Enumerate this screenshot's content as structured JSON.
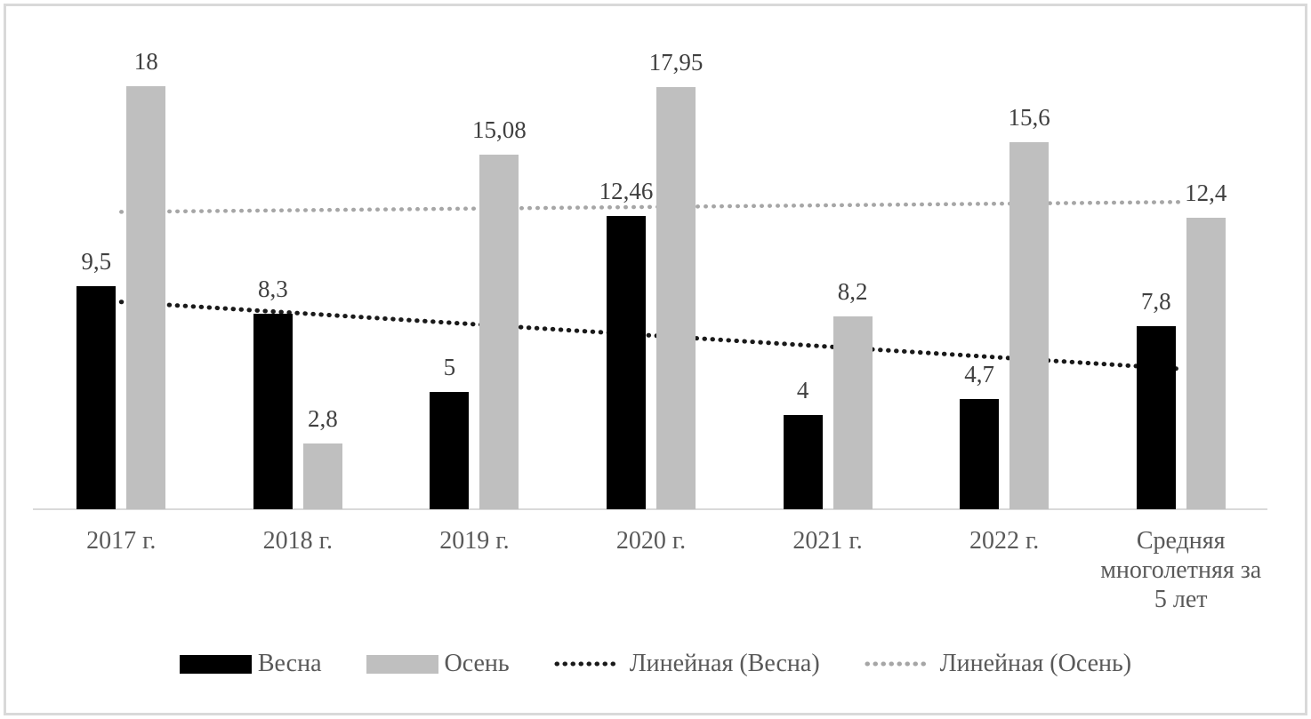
{
  "chart_data": {
    "type": "bar",
    "title": "",
    "xlabel": "",
    "ylabel": "",
    "categories": [
      "2017 г.",
      "2018 г.",
      "2019 г.",
      "2020 г.",
      "2021 г.",
      "2022 г.",
      "Средняя многолетняя за 5 лет"
    ],
    "series": [
      {
        "name": "Весна",
        "color": "#000000",
        "values": [
          9.5,
          8.3,
          5,
          12.46,
          4,
          4.7,
          7.8
        ],
        "value_labels": [
          "9,5",
          "8,3",
          "5",
          "12,46",
          "4",
          "4,7",
          "7,8"
        ]
      },
      {
        "name": "Осень",
        "color": "#bfbfbf",
        "values": [
          18,
          2.8,
          15.08,
          17.95,
          8.2,
          15.6,
          12.4
        ],
        "value_labels": [
          "18",
          "2,8",
          "15,08",
          "17,95",
          "8,2",
          "15,6",
          "12,4"
        ]
      }
    ],
    "trendlines": [
      {
        "name": "Линейная (Весна)",
        "color": "#1a1a1a",
        "start_value": 8.82,
        "end_value": 5.97
      },
      {
        "name": "Линейная (Осень)",
        "color": "#a6a6a6",
        "start_value": 12.65,
        "end_value": 13.07
      }
    ],
    "legend": {
      "position": "bottom",
      "items": [
        {
          "label": "Весна",
          "swatch": "bar",
          "color": "#000000"
        },
        {
          "label": "Осень",
          "swatch": "bar",
          "color": "#bfbfbf"
        },
        {
          "label": "Линейная (Весна)",
          "swatch": "dotted-line",
          "color": "#1a1a1a"
        },
        {
          "label": "Линейная (Осень)",
          "swatch": "dotted-line",
          "color": "#a6a6a6"
        }
      ]
    },
    "ylim": [
      0,
      20.5
    ],
    "grid": false,
    "axis_color": "#d9d9d9",
    "value_label_color": "#3f3f3f",
    "category_label_color": "#595959",
    "frame_color": "#d9d9d9",
    "decimal_separator": ","
  }
}
